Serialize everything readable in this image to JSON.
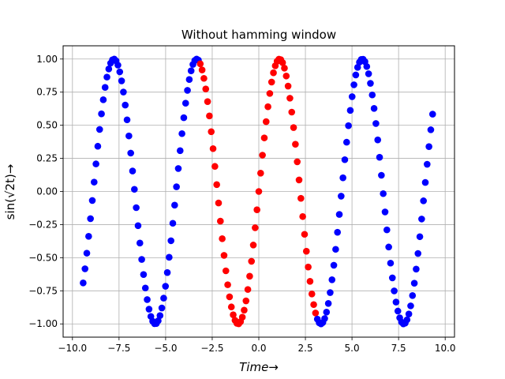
{
  "chart_data": {
    "type": "scatter",
    "title": "Without hamming window",
    "xlabel": "Time→",
    "ylabel": "sin(√2t)→",
    "xlim": [
      -10.5,
      10.5
    ],
    "ylim": [
      -1.1,
      1.1
    ],
    "xticks": [
      -10.0,
      -7.5,
      -5.0,
      -2.5,
      0.0,
      2.5,
      5.0,
      7.5,
      10.0
    ],
    "xtick_labels": [
      "−10.0",
      "−7.5",
      "−5.0",
      "−2.5",
      "0.0",
      "2.5",
      "5.0",
      "7.5",
      "10.0"
    ],
    "yticks": [
      -1.0,
      -0.75,
      -0.5,
      -0.25,
      0.0,
      0.25,
      0.5,
      0.75,
      1.0
    ],
    "ytick_labels": [
      "−1.00",
      "−0.75",
      "−0.50",
      "−0.25",
      "0.00",
      "0.25",
      "0.50",
      "0.75",
      "1.00"
    ],
    "grid": true,
    "function": "sin(sqrt(2) t)",
    "series": [
      {
        "range": [
          -9.4248,
          -3.1416
        ],
        "n": 64,
        "color": "#0000ff"
      },
      {
        "range": [
          -3.1416,
          3.1416
        ],
        "n": 64,
        "color": "#ff0000"
      },
      {
        "range": [
          3.1416,
          9.4248
        ],
        "n": 64,
        "color": "#0000ff"
      }
    ]
  }
}
